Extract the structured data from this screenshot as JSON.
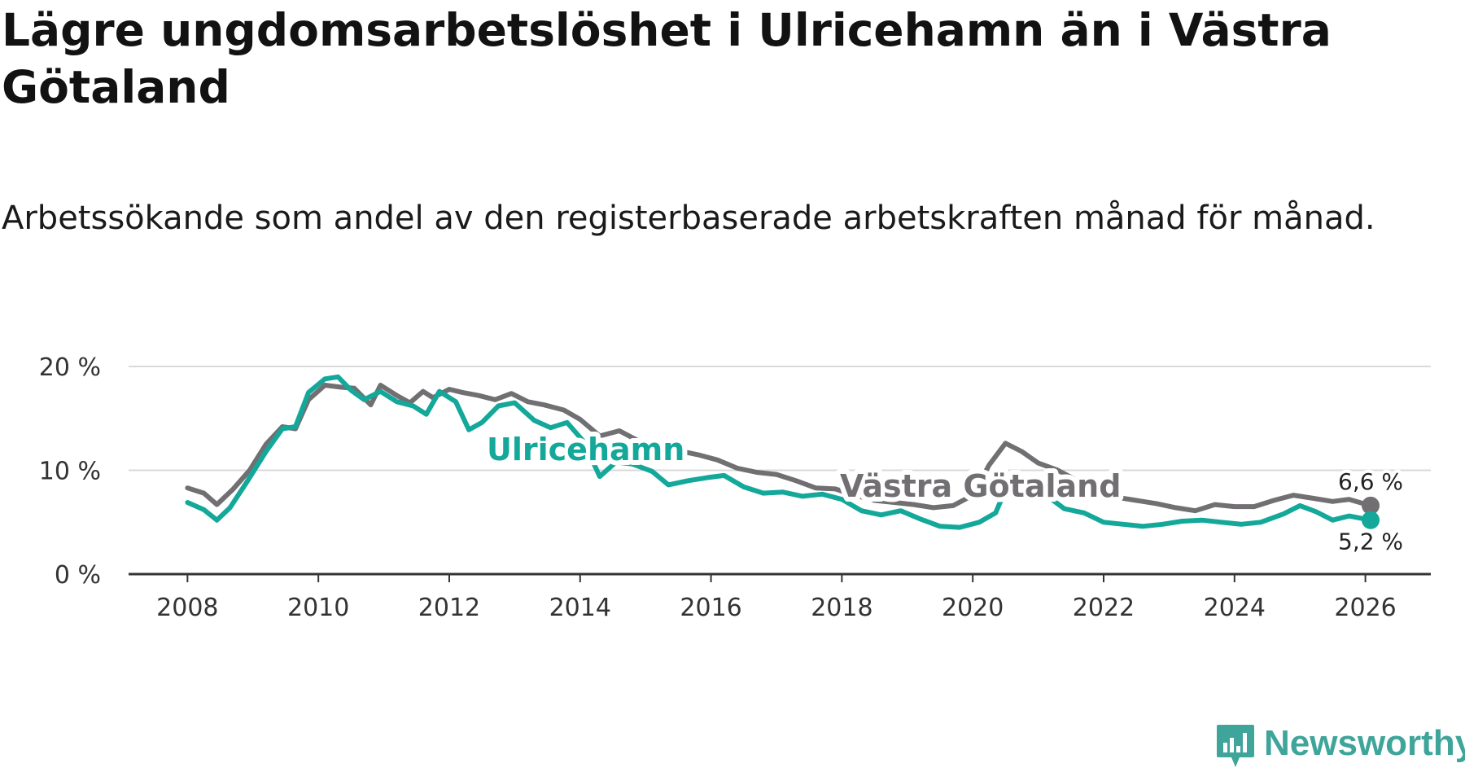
{
  "header": {
    "title": "Lägre ungdomsarbetslöshet i Ulricehamn än i Västra Götaland",
    "subtitle": "Arbetssökande som andel av den registerbaserade arbetskraften månad för månad."
  },
  "brand": {
    "name": "Newsworthy",
    "icon": "bar-chart-logo-icon",
    "color": "#3fa59b"
  },
  "chart_data": {
    "type": "line",
    "title": "Lägre ungdomsarbetslöshet i Ulricehamn än i Västra Götaland",
    "subtitle": "Arbetssökande som andel av den registerbaserade arbetskraften månad för månad.",
    "xlabel": "",
    "ylabel": "",
    "xlim": [
      2007.1,
      2027.0
    ],
    "ylim": [
      0,
      20
    ],
    "grid": true,
    "x_ticks": [
      2008,
      2010,
      2012,
      2014,
      2016,
      2018,
      2020,
      2022,
      2024,
      2026
    ],
    "x_tick_labels": [
      "2008",
      "2010",
      "2012",
      "2014",
      "2016",
      "2018",
      "2020",
      "2022",
      "2024",
      "2026"
    ],
    "y_ticks": [
      0,
      10,
      20
    ],
    "y_tick_labels": [
      "0 %",
      "10 %",
      "20 %"
    ],
    "series": [
      {
        "name": "Västra Götaland",
        "color": "#716f72",
        "points": [
          [
            2008.0,
            8.3
          ],
          [
            2008.25,
            7.8
          ],
          [
            2008.45,
            6.7
          ],
          [
            2008.7,
            8.2
          ],
          [
            2008.95,
            10.0
          ],
          [
            2009.2,
            12.5
          ],
          [
            2009.45,
            14.2
          ],
          [
            2009.65,
            14.0
          ],
          [
            2009.85,
            16.8
          ],
          [
            2010.1,
            18.2
          ],
          [
            2010.35,
            18.0
          ],
          [
            2010.55,
            17.9
          ],
          [
            2010.8,
            16.3
          ],
          [
            2010.95,
            18.2
          ],
          [
            2011.2,
            17.2
          ],
          [
            2011.4,
            16.5
          ],
          [
            2011.6,
            17.6
          ],
          [
            2011.75,
            17.0
          ],
          [
            2012.0,
            17.8
          ],
          [
            2012.2,
            17.5
          ],
          [
            2012.45,
            17.2
          ],
          [
            2012.7,
            16.8
          ],
          [
            2012.95,
            17.4
          ],
          [
            2013.2,
            16.6
          ],
          [
            2013.45,
            16.3
          ],
          [
            2013.75,
            15.8
          ],
          [
            2014.0,
            14.9
          ],
          [
            2014.3,
            13.3
          ],
          [
            2014.6,
            13.8
          ],
          [
            2014.9,
            12.8
          ],
          [
            2015.2,
            12.2
          ],
          [
            2015.5,
            11.9
          ],
          [
            2015.8,
            11.5
          ],
          [
            2016.1,
            11.0
          ],
          [
            2016.4,
            10.2
          ],
          [
            2016.7,
            9.8
          ],
          [
            2017.0,
            9.6
          ],
          [
            2017.3,
            9.0
          ],
          [
            2017.6,
            8.3
          ],
          [
            2017.9,
            8.2
          ],
          [
            2018.2,
            7.6
          ],
          [
            2018.5,
            7.1
          ],
          [
            2018.8,
            6.9
          ],
          [
            2019.1,
            6.7
          ],
          [
            2019.4,
            6.4
          ],
          [
            2019.7,
            6.6
          ],
          [
            2020.0,
            7.6
          ],
          [
            2020.25,
            10.5
          ],
          [
            2020.5,
            12.6
          ],
          [
            2020.75,
            11.8
          ],
          [
            2021.0,
            10.7
          ],
          [
            2021.3,
            10.0
          ],
          [
            2021.6,
            9.0
          ],
          [
            2021.9,
            8.0
          ],
          [
            2022.2,
            7.4
          ],
          [
            2022.5,
            7.1
          ],
          [
            2022.8,
            6.8
          ],
          [
            2023.1,
            6.4
          ],
          [
            2023.4,
            6.1
          ],
          [
            2023.7,
            6.7
          ],
          [
            2024.0,
            6.5
          ],
          [
            2024.3,
            6.5
          ],
          [
            2024.6,
            7.1
          ],
          [
            2024.9,
            7.6
          ],
          [
            2025.2,
            7.3
          ],
          [
            2025.5,
            7.0
          ],
          [
            2025.75,
            7.2
          ],
          [
            2026.08,
            6.6
          ]
        ],
        "label": "Västra Götaland",
        "end_label": "6,6 %"
      },
      {
        "name": "Ulricehamn",
        "color": "#13a89a",
        "points": [
          [
            2008.0,
            6.9
          ],
          [
            2008.25,
            6.2
          ],
          [
            2008.45,
            5.2
          ],
          [
            2008.65,
            6.4
          ],
          [
            2008.9,
            8.8
          ],
          [
            2009.2,
            11.8
          ],
          [
            2009.45,
            14.0
          ],
          [
            2009.65,
            14.2
          ],
          [
            2009.85,
            17.5
          ],
          [
            2010.1,
            18.8
          ],
          [
            2010.3,
            19.0
          ],
          [
            2010.5,
            17.7
          ],
          [
            2010.7,
            16.8
          ],
          [
            2010.95,
            17.6
          ],
          [
            2011.2,
            16.6
          ],
          [
            2011.45,
            16.2
          ],
          [
            2011.65,
            15.4
          ],
          [
            2011.85,
            17.6
          ],
          [
            2012.1,
            16.6
          ],
          [
            2012.3,
            13.9
          ],
          [
            2012.5,
            14.6
          ],
          [
            2012.75,
            16.2
          ],
          [
            2013.0,
            16.5
          ],
          [
            2013.3,
            14.8
          ],
          [
            2013.55,
            14.1
          ],
          [
            2013.8,
            14.6
          ],
          [
            2014.05,
            12.8
          ],
          [
            2014.3,
            9.4
          ],
          [
            2014.55,
            10.8
          ],
          [
            2014.8,
            10.6
          ],
          [
            2015.1,
            9.9
          ],
          [
            2015.35,
            8.6
          ],
          [
            2015.65,
            9.0
          ],
          [
            2015.95,
            9.3
          ],
          [
            2016.2,
            9.5
          ],
          [
            2016.5,
            8.4
          ],
          [
            2016.8,
            7.8
          ],
          [
            2017.1,
            7.9
          ],
          [
            2017.4,
            7.5
          ],
          [
            2017.7,
            7.7
          ],
          [
            2018.0,
            7.2
          ],
          [
            2018.3,
            6.1
          ],
          [
            2018.6,
            5.7
          ],
          [
            2018.9,
            6.1
          ],
          [
            2019.2,
            5.3
          ],
          [
            2019.5,
            4.6
          ],
          [
            2019.8,
            4.5
          ],
          [
            2020.1,
            5.0
          ],
          [
            2020.35,
            5.9
          ],
          [
            2020.55,
            8.9
          ],
          [
            2020.8,
            8.6
          ],
          [
            2021.1,
            7.7
          ],
          [
            2021.4,
            6.3
          ],
          [
            2021.7,
            5.9
          ],
          [
            2022.0,
            5.0
          ],
          [
            2022.3,
            4.8
          ],
          [
            2022.6,
            4.6
          ],
          [
            2022.9,
            4.8
          ],
          [
            2023.2,
            5.1
          ],
          [
            2023.5,
            5.2
          ],
          [
            2023.8,
            5.0
          ],
          [
            2024.1,
            4.8
          ],
          [
            2024.4,
            5.0
          ],
          [
            2024.75,
            5.8
          ],
          [
            2025.0,
            6.6
          ],
          [
            2025.25,
            6.0
          ],
          [
            2025.5,
            5.2
          ],
          [
            2025.75,
            5.6
          ],
          [
            2026.08,
            5.2
          ]
        ],
        "label": "Ulricehamn",
        "end_label": "5,2 %"
      }
    ]
  }
}
